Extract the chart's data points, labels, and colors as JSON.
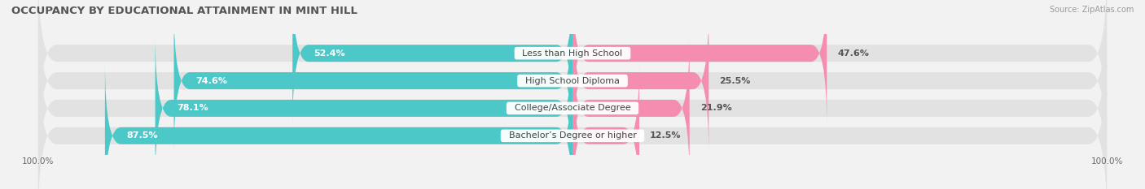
{
  "title": "OCCUPANCY BY EDUCATIONAL ATTAINMENT IN MINT HILL",
  "source": "Source: ZipAtlas.com",
  "categories": [
    "Less than High School",
    "High School Diploma",
    "College/Associate Degree",
    "Bachelor’s Degree or higher"
  ],
  "owner_values": [
    52.4,
    74.6,
    78.1,
    87.5
  ],
  "renter_values": [
    47.6,
    25.5,
    21.9,
    12.5
  ],
  "owner_color": "#4dc8c8",
  "renter_color": "#f48db0",
  "background_color": "#f2f2f2",
  "bar_bg_color": "#e2e2e2",
  "bar_height": 0.62,
  "title_fontsize": 9.5,
  "label_fontsize": 8.0,
  "axis_label_fontsize": 7.5,
  "legend_fontsize": 8.0,
  "source_fontsize": 7.0
}
